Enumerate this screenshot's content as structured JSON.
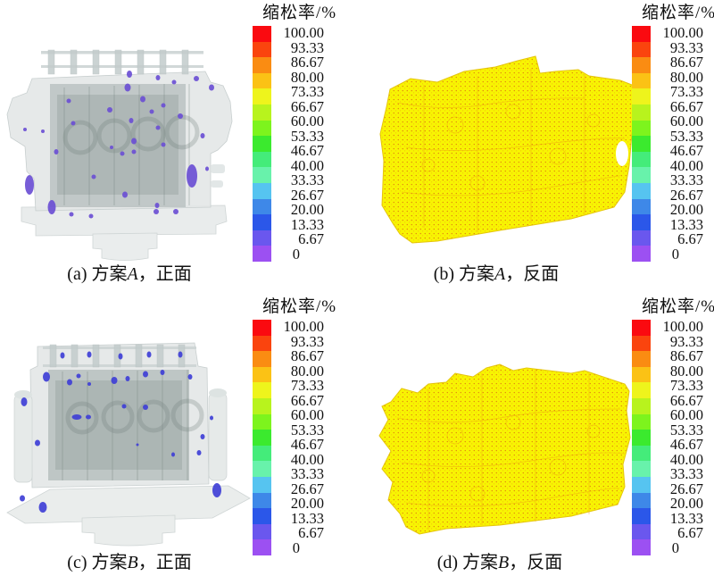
{
  "figure": {
    "legend": {
      "title": "缩松率/%",
      "labels": [
        "100.00",
        "93.33",
        "86.67",
        "80.00",
        "73.33",
        "66.67",
        "60.00",
        "53.33",
        "46.67",
        "40.00",
        "33.33",
        "26.67",
        "20.00",
        "13.33",
        "6.67",
        "0"
      ],
      "colors": [
        "#fa0a10",
        "#fa440e",
        "#fa8c12",
        "#fbc215",
        "#eef41c",
        "#b8f31d",
        "#7df41d",
        "#3bea2e",
        "#44ec7a",
        "#68f2ab",
        "#56c4f0",
        "#3e88e8",
        "#2b57e9",
        "#6a57ee",
        "#9c50f2"
      ]
    },
    "panels": [
      {
        "prefix": "(a) 方案",
        "letter": "A",
        "suffix": "，正面"
      },
      {
        "prefix": "(b) 方案",
        "letter": "A",
        "suffix": "，反面"
      },
      {
        "prefix": "(c) 方案",
        "letter": "B",
        "suffix": "，正面"
      },
      {
        "prefix": "(d) 方案",
        "letter": "B",
        "suffix": "，反面"
      }
    ]
  },
  "chart_data": {
    "type": "heatmap",
    "title": "",
    "colorbar": {
      "label": "缩松率/%",
      "min": 0,
      "max": 100,
      "tick_step": 6.67,
      "tick_labels_top_to_bottom": [
        "100.00",
        "93.33",
        "86.67",
        "80.00",
        "73.33",
        "66.67",
        "60.00",
        "53.33",
        "46.67",
        "40.00",
        "33.33",
        "26.67",
        "20.00",
        "13.33",
        "6.67",
        "0"
      ],
      "segment_colors_top_to_bottom": [
        "#fa0a10",
        "#fa440e",
        "#fa8c12",
        "#fbc215",
        "#eef41c",
        "#b8f31d",
        "#7df41d",
        "#3bea2e",
        "#44ec7a",
        "#68f2ab",
        "#56c4f0",
        "#3e88e8",
        "#2b57e9",
        "#6a57ee",
        "#9c50f2"
      ]
    },
    "panels": [
      {
        "key": "a",
        "caption": "(a) 方案A，正面",
        "scheme": "A",
        "view": "正面",
        "style": "translucent-gray-casting-with-porosity-spots",
        "spot_color": "#6b4fd4",
        "spot_scale_level": "low end of scale (0–6.67%)",
        "spots": [
          [
            31,
            165,
            5,
            11
          ],
          [
            56,
            190,
            4.5,
            8
          ],
          [
            213,
            155,
            6,
            13
          ],
          [
            143,
            41,
            3,
            4
          ],
          [
            141,
            56,
            3.5,
            4.5
          ],
          [
            175,
            45,
            2.5,
            3
          ],
          [
            193,
            50,
            2.5,
            2.5
          ],
          [
            218,
            46,
            3,
            3
          ],
          [
            235,
            56,
            3,
            3.5
          ],
          [
            75,
            71,
            2.5,
            2.5
          ],
          [
            121,
            81,
            3,
            3
          ],
          [
            158,
            69,
            3,
            3.5
          ],
          [
            181,
            76,
            2.5,
            2.5
          ],
          [
            168,
            83,
            2.5,
            2.5
          ],
          [
            145,
            93,
            2.5,
            3
          ],
          [
            80,
            96,
            2.5,
            2.5
          ],
          [
            200,
            88,
            3,
            3
          ],
          [
            26,
            103,
            2,
            2
          ],
          [
            46,
            105,
            2,
            2
          ],
          [
            148,
            116,
            3,
            3.5
          ],
          [
            175,
            101,
            2.5,
            2.5
          ],
          [
            225,
            110,
            2.5,
            3
          ],
          [
            148,
            128,
            2.5,
            2.5
          ],
          [
            181,
            120,
            2.5,
            2.5
          ],
          [
            61,
            128,
            2.5,
            3
          ],
          [
            123,
            123,
            2,
            2
          ],
          [
            135,
            130,
            2.5,
            2.5
          ],
          [
            103,
            156,
            2.5,
            2.5
          ],
          [
            138,
            176,
            3,
            3.5
          ],
          [
            174,
            188,
            2.5,
            3
          ],
          [
            78,
            198,
            2.5,
            2.5
          ],
          [
            100,
            200,
            2.5,
            2.5
          ],
          [
            173,
            195,
            3,
            3
          ],
          [
            195,
            195,
            3,
            3
          ],
          [
            230,
            147,
            2,
            2.5
          ]
        ]
      },
      {
        "key": "b",
        "caption": "(b) 方案A，反面",
        "scheme": "A",
        "view": "反面",
        "style": "surface-mesh-uniform-color",
        "surface_color": "#f8f402",
        "mesh_speckle_color": "#e07d10"
      },
      {
        "key": "c",
        "caption": "(c) 方案B，正面",
        "scheme": "B",
        "view": "正面",
        "style": "translucent-gray-casting-with-porosity-spots",
        "spot_color": "#3f3fd6",
        "spot_scale_level": "low end of scale (0–20%)",
        "spots": [
          [
            68,
            30,
            2.5,
            3.5
          ],
          [
            98,
            29,
            2.5,
            3.5
          ],
          [
            133,
            31,
            2.5,
            3.5
          ],
          [
            165,
            29,
            2.5,
            3.5
          ],
          [
            200,
            29,
            2.5,
            3.5
          ],
          [
            50,
            54,
            4,
            5.5
          ],
          [
            76,
            60,
            3,
            3.5
          ],
          [
            86,
            53,
            2.5,
            2.5
          ],
          [
            126,
            58,
            3.5,
            4
          ],
          [
            141,
            56,
            2.5,
            3
          ],
          [
            161,
            51,
            3,
            3.5
          ],
          [
            180,
            49,
            2.5,
            3
          ],
          [
            211,
            54,
            2.5,
            3
          ],
          [
            98,
            62,
            2,
            2
          ],
          [
            84,
            99,
            5.5,
            3
          ],
          [
            97,
            99,
            3,
            2.5
          ],
          [
            137,
            87,
            2.5,
            2.5
          ],
          [
            161,
            88,
            3,
            3
          ],
          [
            25,
            82,
            3.5,
            5
          ],
          [
            235,
            100,
            2,
            2.5
          ],
          [
            40,
            128,
            3,
            3.5
          ],
          [
            221,
            139,
            2.5,
            3
          ],
          [
            192,
            141,
            2,
            2.5
          ],
          [
            225,
            121,
            2.5,
            3
          ],
          [
            152,
            130,
            1.5,
            1.5
          ],
          [
            241,
            181,
            5,
            8
          ],
          [
            23,
            190,
            3,
            3.5
          ],
          [
            46,
            200,
            4.5,
            6
          ]
        ]
      },
      {
        "key": "d",
        "caption": "(d) 方案B，反面",
        "scheme": "B",
        "view": "反面",
        "style": "surface-mesh-uniform-color",
        "surface_color": "#f8f402",
        "mesh_speckle_color": "#e07d10"
      }
    ]
  }
}
